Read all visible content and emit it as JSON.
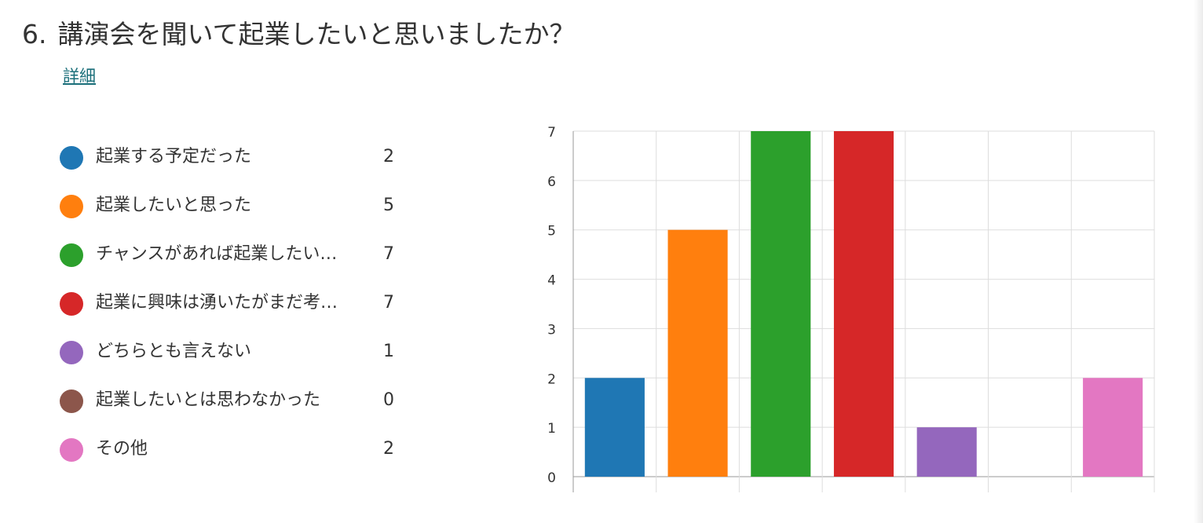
{
  "question": {
    "number": "6.",
    "title": "講演会を聞いて起業したいと思いましたか？"
  },
  "details_link": "詳細",
  "legend": [
    {
      "label": "起業する予定だった",
      "count": "2",
      "color": "#1f77b4"
    },
    {
      "label": "起業したいと思った",
      "count": "5",
      "color": "#ff7f0e"
    },
    {
      "label": "チャンスがあれば起業したい…",
      "count": "7",
      "color": "#2ca02c"
    },
    {
      "label": "起業に興味は湧いたがまだ考…",
      "count": "7",
      "color": "#d62728"
    },
    {
      "label": "どちらとも言えない",
      "count": "1",
      "color": "#9467bd"
    },
    {
      "label": "起業したいとは思わなかった",
      "count": "0",
      "color": "#8c564b"
    },
    {
      "label": "その他",
      "count": "2",
      "color": "#e377c2"
    }
  ],
  "chart_data": {
    "type": "bar",
    "categories": [
      "起業する予定だった",
      "起業したいと思った",
      "チャンスがあれば起業したい…",
      "起業に興味は湧いたがまだ考…",
      "どちらとも言えない",
      "起業したいとは思わなかった",
      "その他"
    ],
    "values": [
      2,
      5,
      7,
      7,
      1,
      0,
      2
    ],
    "colors": [
      "#1f77b4",
      "#ff7f0e",
      "#2ca02c",
      "#d62728",
      "#9467bd",
      "#8c564b",
      "#e377c2"
    ],
    "yticks": [
      "0",
      "1",
      "2",
      "3",
      "4",
      "5",
      "6",
      "7"
    ],
    "ylim": [
      0,
      7
    ],
    "grid": true,
    "legend_position": "left"
  }
}
